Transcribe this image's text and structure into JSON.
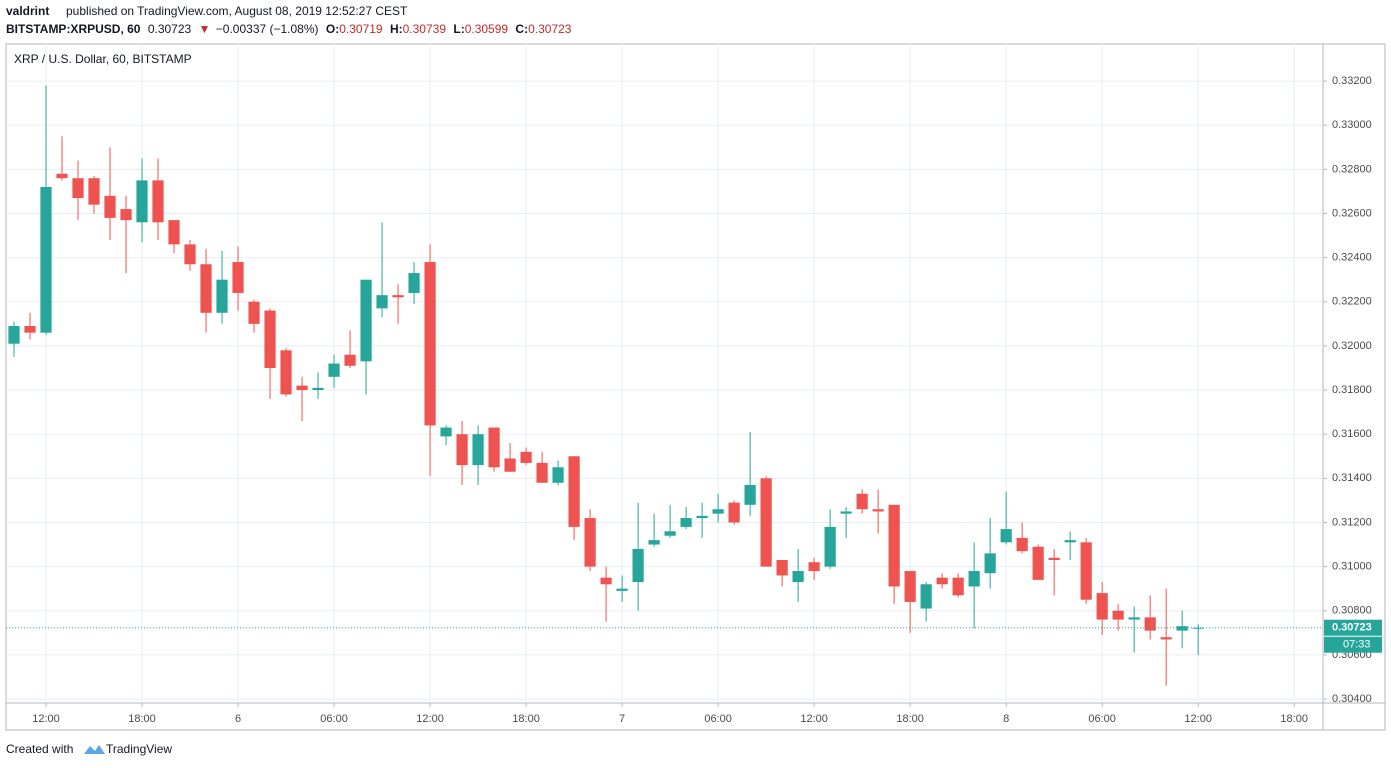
{
  "header": {
    "author": "valdrint",
    "published": "published on TradingView.com, August 08, 2019 12:52:27 CEST",
    "symbol": "BITSTAMP:XRPUSD, 60",
    "price": "0.30723",
    "arrow": "▼",
    "change": "−0.00337 (−1.08%)",
    "open_label": "O:",
    "open": "0.30719",
    "high_label": "H:",
    "high": "0.30739",
    "low_label": "L:",
    "low": "0.30599",
    "close_label": "C:",
    "close": "0.30723"
  },
  "footer": {
    "text": "Created with",
    "brand": "TradingView"
  },
  "chart_data": {
    "type": "candlestick",
    "legend": "XRP / U.S. Dollar, 60, BITSTAMP",
    "up_color": "#26a69a",
    "down_color": "#ef5350",
    "grid": true,
    "x": [
      -14,
      -13,
      -12,
      -11,
      -10,
      -9,
      -8,
      -7,
      -6,
      -5,
      -4,
      -3,
      -2,
      -1,
      0,
      1,
      2,
      3,
      4,
      5,
      6,
      7,
      8,
      9,
      10,
      11,
      12,
      13,
      14,
      15,
      16,
      17,
      18,
      19,
      20,
      21,
      22,
      23,
      24,
      25,
      26,
      27,
      28,
      29,
      30,
      31,
      32,
      33,
      34,
      35,
      36,
      37,
      38,
      39,
      40,
      41,
      42,
      43,
      44,
      45,
      46,
      47,
      48,
      49,
      50,
      51,
      52,
      53,
      54,
      55,
      56,
      57,
      58,
      59,
      60
    ],
    "open": [
      0.3201,
      0.3209,
      0.3206,
      0.3278,
      0.3276,
      0.3276,
      0.3268,
      0.3262,
      0.3256,
      0.3275,
      0.3257,
      0.3246,
      0.3237,
      0.3215,
      0.3238,
      0.322,
      0.3216,
      0.3198,
      0.3182,
      0.318,
      0.3186,
      0.3196,
      0.3193,
      0.3217,
      0.3223,
      0.3224,
      0.3238,
      0.3159,
      0.316,
      0.3146,
      0.3163,
      0.3149,
      0.3152,
      0.3147,
      0.3138,
      0.315,
      0.3122,
      0.3095,
      0.3089,
      0.3093,
      0.311,
      0.3114,
      0.3118,
      0.3122,
      0.3124,
      0.3129,
      0.3128,
      0.314,
      0.3103,
      0.3093,
      0.3102,
      0.31,
      0.3124,
      0.3133,
      0.3126,
      0.3128,
      0.3098,
      0.3081,
      0.3095,
      0.3095,
      0.3091,
      0.3097,
      0.3111,
      0.3113,
      0.3109,
      0.3104,
      0.3111,
      0.3111,
      0.3088,
      0.308,
      0.3076,
      0.3077,
      0.3068,
      0.3071,
      0.30719
    ],
    "high": [
      0.3211,
      0.3215,
      0.3318,
      0.3295,
      0.3284,
      0.3277,
      0.329,
      0.3268,
      0.3285,
      0.3285,
      0.3257,
      0.3248,
      0.3244,
      0.3243,
      0.3245,
      0.3221,
      0.3217,
      0.3199,
      0.3186,
      0.3188,
      0.3196,
      0.3207,
      0.323,
      0.3256,
      0.3228,
      0.3238,
      0.3246,
      0.3164,
      0.3166,
      0.3164,
      0.3163,
      0.3156,
      0.3154,
      0.3152,
      0.3148,
      0.315,
      0.3126,
      0.31,
      0.3096,
      0.3129,
      0.3124,
      0.3128,
      0.3127,
      0.3129,
      0.3133,
      0.313,
      0.3161,
      0.3141,
      0.3103,
      0.3108,
      0.3104,
      0.3126,
      0.3127,
      0.3135,
      0.3135,
      0.3128,
      0.3098,
      0.3093,
      0.3097,
      0.3097,
      0.3111,
      0.3122,
      0.3134,
      0.312,
      0.311,
      0.3108,
      0.3116,
      0.3113,
      0.3093,
      0.3083,
      0.3082,
      0.3087,
      0.309,
      0.308,
      0.30739
    ],
    "low": [
      0.3195,
      0.3203,
      0.3205,
      0.3275,
      0.3257,
      0.326,
      0.3248,
      0.3233,
      0.3247,
      0.3248,
      0.3242,
      0.3234,
      0.3206,
      0.321,
      0.3216,
      0.3206,
      0.3176,
      0.3177,
      0.3166,
      0.3176,
      0.3181,
      0.319,
      0.3178,
      0.3213,
      0.321,
      0.3219,
      0.3141,
      0.3155,
      0.3137,
      0.3137,
      0.3143,
      0.3143,
      0.3146,
      0.3138,
      0.3137,
      0.3112,
      0.3098,
      0.3075,
      0.3084,
      0.308,
      0.3109,
      0.3113,
      0.3117,
      0.3113,
      0.312,
      0.3119,
      0.3123,
      0.31,
      0.3091,
      0.3084,
      0.3094,
      0.3099,
      0.3113,
      0.3124,
      0.3115,
      0.3083,
      0.307,
      0.3075,
      0.309,
      0.3086,
      0.3072,
      0.309,
      0.311,
      0.3106,
      0.3094,
      0.3087,
      0.3103,
      0.3083,
      0.3069,
      0.3071,
      0.3061,
      0.3067,
      0.3046,
      0.3063,
      0.30599
    ],
    "close": [
      0.3209,
      0.3206,
      0.3272,
      0.3276,
      0.3267,
      0.3264,
      0.3258,
      0.3257,
      0.3275,
      0.3256,
      0.3246,
      0.3237,
      0.3215,
      0.323,
      0.3224,
      0.321,
      0.319,
      0.3178,
      0.318,
      0.3181,
      0.3192,
      0.3191,
      0.323,
      0.3223,
      0.3222,
      0.3233,
      0.3164,
      0.3163,
      0.3146,
      0.316,
      0.3145,
      0.3143,
      0.3147,
      0.3138,
      0.3145,
      0.3118,
      0.31,
      0.3092,
      0.309,
      0.3108,
      0.3112,
      0.3116,
      0.3122,
      0.3123,
      0.3126,
      0.312,
      0.3137,
      0.31,
      0.3096,
      0.3098,
      0.3098,
      0.3118,
      0.3125,
      0.3126,
      0.3125,
      0.3091,
      0.3084,
      0.3092,
      0.3092,
      0.3087,
      0.3098,
      0.3106,
      0.3117,
      0.3107,
      0.3094,
      0.3103,
      0.3112,
      0.3085,
      0.3076,
      0.3076,
      0.3077,
      0.3071,
      0.3067,
      0.3073,
      0.30723
    ],
    "xlim": [
      -14.5,
      67.8
    ],
    "xticks": [
      {
        "value": -12,
        "label": "12:00"
      },
      {
        "value": -6,
        "label": "18:00"
      },
      {
        "value": 0,
        "label": "6"
      },
      {
        "value": 6,
        "label": "06:00"
      },
      {
        "value": 12,
        "label": "12:00"
      },
      {
        "value": 18,
        "label": "18:00"
      },
      {
        "value": 24,
        "label": "7"
      },
      {
        "value": 30,
        "label": "06:00"
      },
      {
        "value": 36,
        "label": "12:00"
      },
      {
        "value": 42,
        "label": "18:00"
      },
      {
        "value": 48,
        "label": "8"
      },
      {
        "value": 54,
        "label": "06:00"
      },
      {
        "value": 60,
        "label": "12:00"
      },
      {
        "value": 66,
        "label": "18:00"
      }
    ],
    "ylim": [
      0.30382,
      0.33368
    ],
    "yticks": [
      {
        "value": 0.304,
        "label": "0.30400"
      },
      {
        "value": 0.306,
        "label": "0.30600"
      },
      {
        "value": 0.308,
        "label": "0.30800"
      },
      {
        "value": 0.31,
        "label": "0.31000"
      },
      {
        "value": 0.312,
        "label": "0.31200"
      },
      {
        "value": 0.314,
        "label": "0.31400"
      },
      {
        "value": 0.316,
        "label": "0.31600"
      },
      {
        "value": 0.318,
        "label": "0.31800"
      },
      {
        "value": 0.32,
        "label": "0.32000"
      },
      {
        "value": 0.322,
        "label": "0.32200"
      },
      {
        "value": 0.324,
        "label": "0.32400"
      },
      {
        "value": 0.326,
        "label": "0.32600"
      },
      {
        "value": 0.328,
        "label": "0.32800"
      },
      {
        "value": 0.33,
        "label": "0.33000"
      },
      {
        "value": 0.332,
        "label": "0.33200"
      }
    ],
    "last_price": {
      "value": 0.30723,
      "label": "0.30723"
    },
    "countdown": "07:33"
  }
}
